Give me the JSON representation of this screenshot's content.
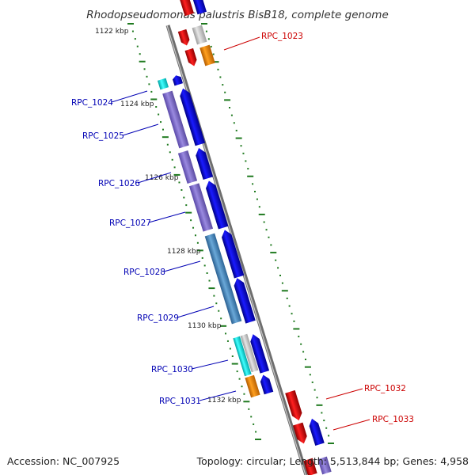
{
  "title": "Rhodopseudomonas palustris BisB18, complete genome",
  "footer": {
    "accession": "Accession: NC_007925",
    "summary": "Topology: circular; Length: 5,513,844 bp; Genes: 4,958"
  },
  "ticks": [
    "1122 kbp",
    "1124 kbp",
    "1126 kbp",
    "1128 kbp",
    "1130 kbp",
    "1132 kbp"
  ],
  "genes": [
    "RPC_1023",
    "RPC_1024",
    "RPC_1025",
    "RPC_1026",
    "RPC_1027",
    "RPC_1028",
    "RPC_1029",
    "RPC_1030",
    "RPC_1031",
    "RPC_1032",
    "RPC_1033"
  ],
  "colors": {
    "left_label": "#0000b4",
    "right_label": "#cc0000",
    "backbone": "#8a8a8a",
    "tick_marks": "#1f7a1f",
    "forward_cds": "#0000e6",
    "reverse_cds": "#e00000",
    "orange_cds": "#f08c00",
    "grey_cds": "#c0c0c0",
    "cyan_cds": "#00e6e6",
    "purple_feature": "#7a68c8",
    "steel_feature": "#4a86b8"
  }
}
